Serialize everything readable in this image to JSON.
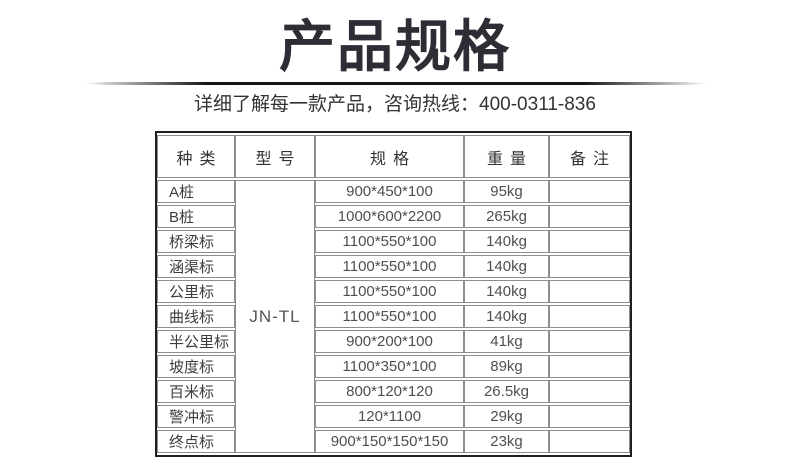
{
  "page": {
    "title": "产品规格",
    "subtitle": "详细了解每一款产品，咨询热线：400-0311-836",
    "hotline": "400-0311-836"
  },
  "table": {
    "headers": [
      "种类",
      "型号",
      "规格",
      "重量",
      "备注"
    ],
    "model": "JN-TL",
    "rows": [
      {
        "type": "A桩",
        "spec": "900*450*100",
        "weight": "95kg",
        "note": ""
      },
      {
        "type": "B桩",
        "spec": "1000*600*2200",
        "weight": "265kg",
        "note": ""
      },
      {
        "type": "桥梁标",
        "spec": "1100*550*100",
        "weight": "140kg",
        "note": ""
      },
      {
        "type": "涵渠标",
        "spec": "1100*550*100",
        "weight": "140kg",
        "note": ""
      },
      {
        "type": "公里标",
        "spec": "1100*550*100",
        "weight": "140kg",
        "note": ""
      },
      {
        "type": "曲线标",
        "spec": "1100*550*100",
        "weight": "140kg",
        "note": ""
      },
      {
        "type": "半公里标",
        "spec": "900*200*100",
        "weight": "41kg",
        "note": ""
      },
      {
        "type": "坡度标",
        "spec": "1100*350*100",
        "weight": "89kg",
        "note": ""
      },
      {
        "type": "百米标",
        "spec": "800*120*120",
        "weight": "26.5kg",
        "note": ""
      },
      {
        "type": "警冲标",
        "spec": "120*1100",
        "weight": "29kg",
        "note": ""
      },
      {
        "type": "终点标",
        "spec": "900*150*150*150",
        "weight": "23kg",
        "note": ""
      }
    ]
  },
  "colors": {
    "title": "#2d2d35",
    "outer_border": "#1f1f1f",
    "inner_border": "#8e8e8e",
    "text": "#4f4f4f"
  }
}
